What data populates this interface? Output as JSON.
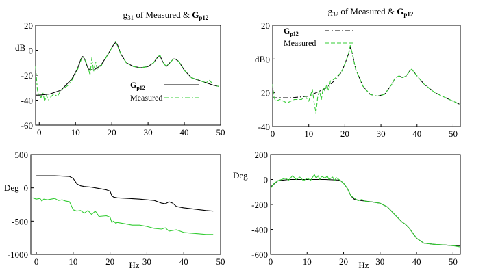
{
  "chart_data": [
    {
      "type": "line",
      "title": "g31 of Measured & Gp12",
      "title_parts": {
        "g_base": "g",
        "g_sub": "31",
        "mid": " of Measured & ",
        "G_base": "G",
        "G_sub": "p12"
      },
      "ylabel": "dB",
      "xlabel": "",
      "xlim": [
        -1,
        50
      ],
      "ylim": [
        -60,
        20
      ],
      "xticks": [
        0,
        10,
        20,
        30,
        40,
        50
      ],
      "yticks": [
        -60,
        -40,
        -20,
        0,
        20
      ],
      "legend": {
        "position": "lower-center",
        "entries": [
          {
            "base": "G",
            "sub": "p12"
          },
          {
            "base": "Measured",
            "sub": ""
          }
        ]
      },
      "series": [
        {
          "name": "Gp12",
          "color": "#000000",
          "style": "solid",
          "x": [
            -1,
            0,
            3,
            6,
            9,
            10.5,
            11.5,
            12,
            12.5,
            13.5,
            15,
            17,
            19,
            20,
            20.6,
            21,
            21.5,
            22.5,
            24,
            26,
            28,
            30,
            31.5,
            32.8,
            33.3,
            34,
            35,
            36,
            37,
            37.5,
            38.5,
            40,
            42,
            44,
            46,
            48,
            49.5
          ],
          "y": [
            -36,
            -36,
            -35,
            -32,
            -23,
            -15,
            -7,
            -5,
            -7,
            -15,
            -16,
            -12,
            -3,
            2,
            5,
            6,
            5,
            -3,
            -10,
            -13,
            -14,
            -13,
            -10,
            -5,
            -4.5,
            -9,
            -13,
            -10,
            -7,
            -7,
            -9,
            -16,
            -22,
            -24,
            -26,
            -28,
            -29
          ]
        },
        {
          "name": "Measured",
          "color": "#33cc33",
          "style": "dashdot",
          "x": [
            -1,
            -0.5,
            0,
            0.5,
            1,
            1.5,
            2,
            2.5,
            3,
            4,
            5,
            6,
            7,
            8,
            9,
            10.5,
            11.5,
            12,
            12.5,
            13.5,
            14,
            14.5,
            15,
            15.5,
            16,
            16.5,
            17,
            19,
            20,
            20.6,
            21,
            21.5,
            22.5,
            24,
            26,
            28,
            30,
            31.5,
            32.8,
            33.3,
            34,
            35,
            36,
            37,
            37.5,
            38.5,
            40,
            42,
            44,
            46,
            47,
            48,
            49.5
          ],
          "y": [
            -13,
            -32,
            -36,
            -38,
            -34,
            -41,
            -36,
            -40,
            -38,
            -35,
            -37,
            -32,
            -30,
            -28,
            -24,
            -16,
            -8,
            -5,
            -7,
            -14,
            -20,
            -6,
            -17,
            -9,
            -16,
            -12,
            -13,
            -3,
            2,
            5,
            7,
            4,
            -3,
            -10,
            -13,
            -14,
            -13,
            -10,
            -5,
            -4,
            -9,
            -13,
            -10,
            -7,
            -7,
            -9,
            -16,
            -22,
            -24,
            -26,
            -24,
            -28,
            -29
          ]
        }
      ]
    },
    {
      "type": "line",
      "title": "g32 of Measured & Gp12",
      "title_parts": {
        "g_base": "g",
        "g_sub": "32",
        "mid": " of Measured & ",
        "G_base": "G",
        "G_sub": "p12"
      },
      "ylabel": "dB",
      "xlabel": "",
      "xlim": [
        0,
        52
      ],
      "ylim": [
        -40,
        20
      ],
      "xticks": [
        0,
        10,
        20,
        30,
        40,
        50
      ],
      "yticks": [
        -40,
        -20,
        0,
        20
      ],
      "legend": {
        "position": "top-left",
        "entries": [
          {
            "base": "G",
            "sub": "p12"
          },
          {
            "base": "Measured",
            "sub": ""
          }
        ]
      },
      "series": [
        {
          "name": "Gp12",
          "color": "#000000",
          "style": "dashdot",
          "x": [
            0,
            5,
            10,
            13,
            15,
            17,
            19,
            20,
            21,
            21.5,
            22,
            23,
            25,
            27,
            29,
            31,
            33,
            34,
            35,
            36,
            37,
            38,
            38.5,
            40,
            42,
            45,
            48,
            50,
            52
          ],
          "y": [
            -23,
            -23,
            -22,
            -19,
            -17,
            -13,
            -8,
            -3,
            3,
            7,
            4,
            -6,
            -16,
            -21,
            -22,
            -21,
            -15,
            -11,
            -10,
            -11,
            -10,
            -7,
            -6,
            -10,
            -15,
            -20,
            -23,
            -25,
            -27
          ]
        },
        {
          "name": "Measured",
          "color": "#33cc33",
          "style": "dash",
          "x": [
            0,
            0.3,
            0.8,
            2,
            4,
            6,
            8,
            9,
            10,
            11,
            11.5,
            12,
            12.5,
            13,
            13.5,
            14,
            14.5,
            15,
            15.5,
            16,
            17,
            19,
            20,
            21,
            21.5,
            22,
            23,
            25,
            27,
            29,
            31,
            33,
            34,
            35,
            36,
            37,
            38,
            38.5,
            40,
            42,
            45,
            48,
            50,
            52
          ],
          "y": [
            -15,
            -22,
            -25,
            -24,
            -26,
            -24,
            -24,
            -22,
            -25,
            -18,
            -26,
            -32,
            -22,
            -19,
            -24,
            -17,
            -19,
            -15,
            -19,
            -13,
            -12,
            -8,
            -3,
            3,
            8,
            4,
            -6,
            -16,
            -21,
            -22,
            -21,
            -15,
            -11,
            -10,
            -11,
            -10,
            -7,
            -6,
            -10,
            -15,
            -20,
            -23,
            -25,
            -27
          ]
        }
      ]
    },
    {
      "type": "line",
      "title": "",
      "ylabel": "Deg",
      "xlabel": "Hz",
      "xlim": [
        -1.5,
        50
      ],
      "ylim": [
        -1000,
        500
      ],
      "xticks": [
        0,
        10,
        20,
        30,
        40,
        50
      ],
      "yticks": [
        -1000,
        -500,
        0,
        500
      ],
      "series": [
        {
          "name": "Gp12",
          "color": "#000000",
          "style": "solid",
          "x": [
            0,
            5,
            9,
            10,
            11,
            12,
            13,
            15,
            19,
            20,
            20.5,
            21,
            22,
            25,
            28,
            30,
            32,
            33,
            34,
            35,
            36,
            37,
            38,
            40,
            43,
            46,
            48
          ],
          "y": [
            180,
            180,
            170,
            140,
            60,
            30,
            20,
            10,
            -30,
            -50,
            -120,
            -140,
            -150,
            -160,
            -170,
            -180,
            -190,
            -210,
            -230,
            -240,
            -210,
            -230,
            -280,
            -300,
            -320,
            -340,
            -350
          ]
        },
        {
          "name": "Measured",
          "color": "#33cc33",
          "style": "solid",
          "x": [
            -1,
            0,
            1,
            1.5,
            2,
            3,
            5,
            6,
            7,
            8,
            9,
            10,
            11,
            12,
            13,
            14,
            15,
            16,
            17,
            19,
            20,
            20.5,
            21,
            21.5,
            22,
            24,
            26,
            28,
            30,
            32,
            34,
            35,
            36,
            38,
            40,
            42,
            44,
            46,
            48
          ],
          "y": [
            -150,
            -170,
            -160,
            -200,
            -170,
            -180,
            -160,
            -190,
            -180,
            -200,
            -210,
            -330,
            -350,
            -340,
            -380,
            -340,
            -400,
            -350,
            -430,
            -420,
            -440,
            -520,
            -500,
            -530,
            -520,
            -540,
            -560,
            -560,
            -580,
            -610,
            -620,
            -600,
            -650,
            -630,
            -670,
            -680,
            -690,
            -700,
            -700
          ]
        }
      ]
    },
    {
      "type": "line",
      "title": "",
      "ylabel": "Deg",
      "xlabel": "Hz",
      "xlim": [
        0,
        52
      ],
      "ylim": [
        -600,
        200
      ],
      "xticks": [
        0,
        10,
        20,
        30,
        40,
        50
      ],
      "yticks": [
        -600,
        -400,
        -200,
        0,
        200
      ],
      "series": [
        {
          "name": "Gp12",
          "color": "#000000",
          "style": "solid",
          "x": [
            0,
            2,
            5,
            10,
            15,
            19,
            20,
            21,
            22,
            23,
            25,
            28,
            30,
            32,
            34,
            36,
            37,
            38,
            40,
            42,
            45,
            48,
            50,
            52
          ],
          "y": [
            -60,
            -10,
            0,
            0,
            0,
            -5,
            -30,
            -70,
            -130,
            -160,
            -170,
            -180,
            -190,
            -220,
            -280,
            -340,
            -360,
            -390,
            -470,
            -510,
            -520,
            -525,
            -530,
            -530
          ]
        },
        {
          "name": "Measured",
          "color": "#33cc33",
          "style": "solid",
          "x": [
            0,
            1,
            2,
            3,
            4,
            5,
            6,
            7,
            8,
            9,
            10,
            11,
            12,
            12.5,
            13,
            13.5,
            14,
            15,
            15.5,
            16,
            17,
            17.5,
            18,
            19,
            20,
            21,
            22,
            23,
            24,
            25,
            26,
            28,
            30,
            32,
            34,
            36,
            37,
            38,
            40,
            42,
            45,
            48,
            50,
            52
          ],
          "y": [
            -70,
            -30,
            -10,
            0,
            10,
            -5,
            30,
            0,
            20,
            -10,
            10,
            -5,
            40,
            10,
            30,
            0,
            25,
            10,
            30,
            0,
            20,
            -10,
            15,
            -5,
            -30,
            -70,
            -130,
            -150,
            -170,
            -160,
            -175,
            -180,
            -190,
            -220,
            -280,
            -340,
            -360,
            -390,
            -470,
            -510,
            -520,
            -525,
            -530,
            -540
          ]
        }
      ]
    }
  ]
}
